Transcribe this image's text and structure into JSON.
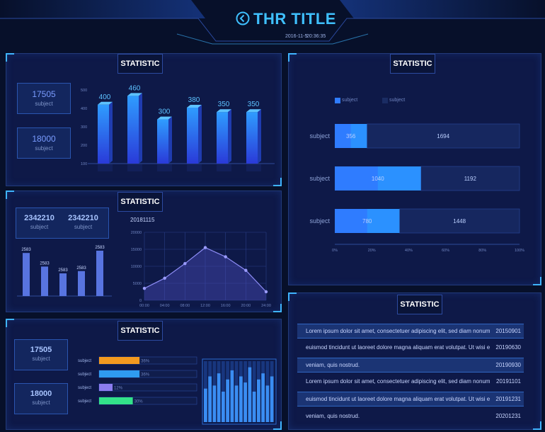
{
  "header": {
    "title": "THR TITLE",
    "date": "2016-11-5",
    "time": "20:36:35"
  },
  "panel_tl": {
    "title": "STATISTIC",
    "stat1": {
      "value": "17505",
      "label": "subject"
    },
    "stat2": {
      "value": "18000",
      "label": "subject"
    }
  },
  "panel_ml": {
    "title": "STATISTIC",
    "stat1": {
      "value": "2342210",
      "label": "subject"
    },
    "stat2": {
      "value": "2342210",
      "label": "subject"
    }
  },
  "panel_bl": {
    "title": "STATISTIC",
    "stat1": {
      "value": "17505",
      "label": "subject"
    },
    "stat2": {
      "value": "18000",
      "label": "subject"
    }
  },
  "panel_tr": {
    "title": "STATISTIC",
    "legend": [
      "subject",
      "subject"
    ]
  },
  "panel_br": {
    "title": "STATISTIC",
    "rows": [
      {
        "text": "Lorem ipsum dolor sit amet, consectetuer adipiscing elit, sed diam nonummy nibh",
        "date": "20150901"
      },
      {
        "text": "euismod tincidunt ut laoreet dolore magna aliquam erat volutpat. Ut wisi enim ad minim",
        "date": "20190630"
      },
      {
        "text": "veniam, quis nostrud.",
        "date": "20190930"
      },
      {
        "text": "Lorem ipsum dolor sit amet, consectetuer adipiscing elit, sed diam nonummy nibh",
        "date": "20191101"
      },
      {
        "text": "euismod tincidunt ut laoreet dolore magna aliquam erat volutpat. Ut wisi enim ad minim",
        "date": "20191231"
      },
      {
        "text": "veniam, quis nostrud.",
        "date": "20201231"
      }
    ]
  },
  "chart_data": [
    {
      "id": "bar3d",
      "type": "bar",
      "values": [
        400,
        460,
        300,
        380,
        350,
        350
      ],
      "yticks": [
        "500",
        "400",
        "300",
        "200",
        "100"
      ]
    },
    {
      "id": "smallbars",
      "type": "bar",
      "values": [
        2583,
        2583,
        2583,
        2583,
        2583
      ],
      "labels": [
        "2583",
        "2583",
        "2583",
        "2583",
        "2583"
      ],
      "levels": [
        0.95,
        0.65,
        0.5,
        0.55,
        1.0
      ]
    },
    {
      "id": "line",
      "type": "area",
      "title": "20181115",
      "x": [
        "00:00",
        "04:00",
        "08:00",
        "12:00",
        "16:00",
        "20:00",
        "24:00"
      ],
      "yticks": [
        "20000",
        "15000",
        "10000",
        "5000",
        "0"
      ],
      "values": [
        3500,
        6500,
        10800,
        15500,
        12800,
        8800,
        2500
      ],
      "ylim": [
        0,
        20000
      ]
    },
    {
      "id": "hbar",
      "type": "bar",
      "categories": [
        "subject",
        "subject",
        "subject"
      ],
      "series": [
        {
          "values": [
            356,
            1040,
            780
          ]
        },
        {
          "values": [
            1694,
            1192,
            1448
          ]
        }
      ],
      "xticks": [
        "0%",
        "20%",
        "40%",
        "60%",
        "80%",
        "100%"
      ]
    },
    {
      "id": "progress",
      "type": "bar",
      "categories": [
        "subject",
        "subject",
        "subject",
        "subject"
      ],
      "values": [
        36,
        36,
        12,
        30
      ],
      "labels": [
        "36%",
        "36%",
        "12%",
        "30%"
      ],
      "colors": [
        "#f39a1f",
        "#2f9bf0",
        "#8b7cf0",
        "#33e28a"
      ]
    },
    {
      "id": "eq",
      "type": "bar",
      "levels": [
        0.55,
        0.75,
        0.6,
        0.8,
        0.5,
        0.7,
        0.85,
        0.6,
        0.75,
        0.65,
        0.9,
        0.5,
        0.7,
        0.8,
        0.6,
        0.75
      ]
    }
  ],
  "colors": {
    "accent": "#3fb4ff",
    "bar_top": "#2f9cff",
    "bar_bottom": "#2a3ad8",
    "line": "#8d8cf5"
  }
}
